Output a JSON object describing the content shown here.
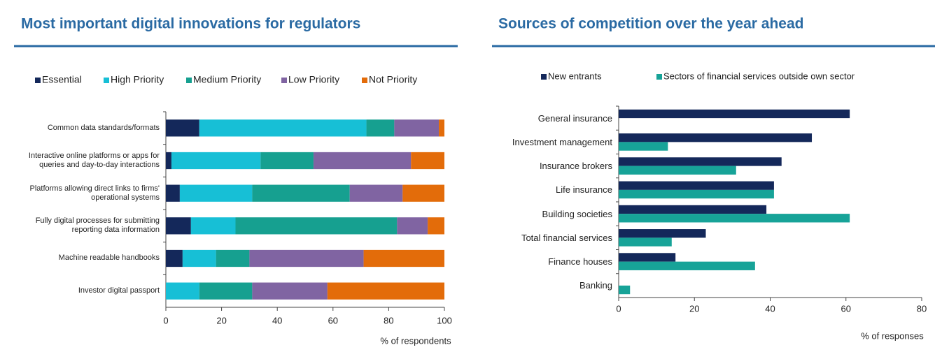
{
  "chart_data": [
    {
      "type": "stacked-hbar",
      "title": "Most important digital innovations for regulators",
      "x_label": "% of respondents",
      "categories": [
        "Common data standards/formats",
        "Interactive online platforms or apps for queries and day-to-day interactions",
        "Platforms allowing direct links to firms' operational systems",
        "Fully digital processes for submitting reporting data information",
        "Machine readable handbooks",
        "Investor digital passport"
      ],
      "series": [
        {
          "name": "Essential",
          "color": "#14285a",
          "values": [
            12,
            2,
            5,
            9,
            6,
            0
          ]
        },
        {
          "name": "High Priority",
          "color": "#17bfd6",
          "values": [
            60,
            32,
            26,
            16,
            12,
            12
          ]
        },
        {
          "name": "Medium Priority",
          "color": "#16a090",
          "values": [
            10,
            19,
            35,
            58,
            12,
            19
          ]
        },
        {
          "name": "Low Priority",
          "color": "#8064a2",
          "values": [
            16,
            35,
            19,
            11,
            41,
            27
          ]
        },
        {
          "name": "Not Priority",
          "color": "#e36c0a",
          "values": [
            2,
            12,
            15,
            6,
            29,
            42
          ]
        }
      ],
      "xlim": [
        0,
        100
      ],
      "xticks": [
        0,
        20,
        40,
        60,
        80,
        100
      ],
      "grid": false,
      "legend": "top"
    },
    {
      "type": "grouped-hbar",
      "title": "Sources of competition over the year ahead",
      "x_label": "% of responses",
      "categories": [
        "General insurance",
        "Investment management",
        "Insurance brokers",
        "Life insurance",
        "Building societies",
        "Total financial services",
        "Finance houses",
        "Banking"
      ],
      "series": [
        {
          "name": "New entrants",
          "color": "#14285a",
          "values": [
            61,
            51,
            43,
            41,
            39,
            23,
            15,
            0
          ]
        },
        {
          "name": "Sectors of financial services outside own sector",
          "color": "#17a398",
          "values": [
            0,
            13,
            31,
            41,
            61,
            14,
            36,
            3
          ]
        }
      ],
      "xlim": [
        0,
        80
      ],
      "xticks": [
        0,
        20,
        40,
        60,
        80
      ],
      "grid": false,
      "legend": "top"
    }
  ]
}
